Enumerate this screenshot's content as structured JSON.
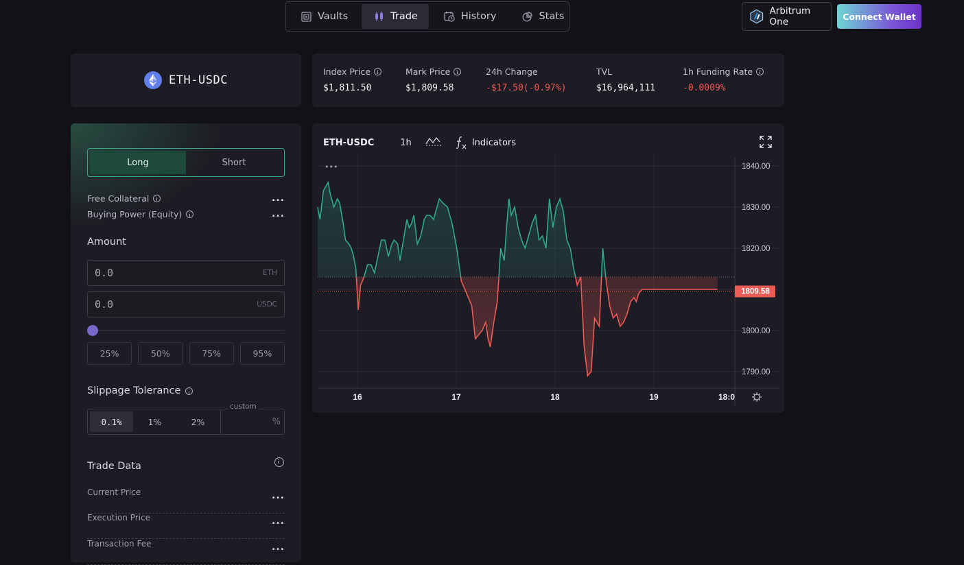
{
  "nav": {
    "tabs": [
      {
        "label": "Vaults",
        "icon": "vault-icon"
      },
      {
        "label": "Trade",
        "icon": "candlestick-icon",
        "active": true
      },
      {
        "label": "History",
        "icon": "history-icon"
      },
      {
        "label": "Stats",
        "icon": "pie-chart-icon"
      }
    ],
    "network": "Arbitrum One",
    "connect": "Connect Wallet"
  },
  "pair": {
    "name": "ETH-USDC",
    "icon": "ethereum-icon"
  },
  "stats": [
    {
      "label": "Index Price",
      "value": "$1,811.50",
      "info": true
    },
    {
      "label": "Mark Price",
      "value": "$1,809.58",
      "info": true
    },
    {
      "label": "24h Change",
      "value": "-$17.50(-0.97%)",
      "negative": true
    },
    {
      "label": "TVL",
      "value": "$16,964,111"
    },
    {
      "label": "1h Funding Rate",
      "value": "-0.0009%",
      "negative": true,
      "info": true
    }
  ],
  "trade": {
    "long_label": "Long",
    "short_label": "Short",
    "selected_side": "Long",
    "free_collateral_label": "Free Collateral",
    "free_collateral_value": "...",
    "buying_power_label": "Buying Power (Equity)",
    "buying_power_value": "...",
    "amount_title": "Amount",
    "amount_eth_placeholder": "0.0",
    "amount_eth_unit": "ETH",
    "amount_usdc_placeholder": "0.0",
    "amount_usdc_unit": "USDC",
    "slider_value": 0,
    "pct_buttons": [
      "25%",
      "50%",
      "75%",
      "95%"
    ],
    "slippage_title": "Slippage Tolerance",
    "slippage_options": [
      "0.1%",
      "1%",
      "2%"
    ],
    "slippage_selected": "0.1%",
    "slippage_custom_label": "custom",
    "slippage_custom_unit": "%",
    "trade_data_title": "Trade Data",
    "trade_data_rows": [
      {
        "label": "Current Price",
        "value": "..."
      },
      {
        "label": "Execution Price",
        "value": "..."
      },
      {
        "label": "Transaction Fee",
        "value": "..."
      }
    ]
  },
  "chart": {
    "symbol": "ETH-USDC",
    "interval": "1h",
    "indicators_label": "Indicators",
    "more_label": "•••"
  },
  "colors": {
    "up": "#2fa98c",
    "down": "#ec5b56",
    "accent": "#7a68c9",
    "background": "#121117",
    "card": "#1d1c24"
  },
  "chart_data": {
    "type": "area",
    "title": "ETH-USDC",
    "x_ticks": [
      "16",
      "17",
      "18",
      "19",
      "18:0"
    ],
    "y_ticks": [
      "1840.00",
      "1830.00",
      "1820.00",
      "1810.00",
      "1800.00",
      "1790.00"
    ],
    "ylim": [
      1786,
      1842
    ],
    "baseline": 1813.0,
    "last_price": 1809.58,
    "last_price_label": "1809.58",
    "x_range": [
      0,
      18
    ],
    "series": [
      {
        "x": [
          0.0,
          0.1,
          0.25,
          0.45,
          0.55,
          0.7,
          0.85,
          0.95,
          1.1,
          1.2,
          1.35,
          1.45,
          1.55,
          1.65,
          1.75,
          1.85,
          2.0,
          2.15,
          2.3,
          2.45,
          2.6,
          2.75,
          2.9,
          3.05,
          3.2,
          3.3,
          3.45,
          3.55,
          3.7,
          3.85,
          3.95,
          4.05,
          4.15,
          4.3,
          4.45,
          4.6,
          4.7,
          4.85,
          5.0,
          5.1,
          5.25,
          5.4,
          5.6,
          5.8,
          6.0,
          6.2,
          6.35,
          6.5,
          6.65,
          6.8,
          6.95,
          7.1,
          7.25,
          7.35,
          7.45,
          7.6,
          7.75,
          7.9,
          8.05,
          8.15,
          8.25,
          8.35,
          8.5,
          8.65,
          8.8,
          8.95,
          9.1,
          9.25,
          9.4,
          9.55,
          9.7,
          9.85,
          10.0,
          10.15,
          10.3,
          10.45,
          10.6,
          10.75,
          10.9,
          11.05,
          11.2,
          11.35,
          11.5,
          11.65,
          11.8,
          11.95,
          12.15,
          12.3,
          12.45,
          12.6,
          12.75,
          12.9,
          13.05,
          13.2,
          13.35,
          13.5,
          13.65,
          13.75,
          13.85,
          14.0,
          14.1,
          14.25,
          14.4,
          14.55,
          14.7,
          14.85,
          15.0,
          15.15,
          15.3,
          15.45,
          15.6,
          15.75,
          15.9,
          16.05,
          16.2,
          16.35,
          16.5,
          16.65,
          16.8,
          16.95,
          17.1,
          17.25
        ],
        "values": [
          1830,
          1827,
          1834,
          1836,
          1833,
          1830,
          1832,
          1831,
          1826,
          1822,
          1821,
          1820,
          1818,
          1815,
          1805,
          1811,
          1813,
          1816,
          1816,
          1814,
          1818,
          1822,
          1822,
          1818,
          1821,
          1822,
          1821,
          1817,
          1822,
          1827,
          1825,
          1826,
          1828,
          1821,
          1823,
          1827,
          1828,
          1828,
          1827,
          1829,
          1832,
          1831,
          1830,
          1826,
          1820,
          1812,
          1810,
          1808,
          1806,
          1798,
          1799,
          1800,
          1802,
          1798,
          1796,
          1802,
          1807,
          1820,
          1817,
          1825,
          1832,
          1828,
          1830,
          1825,
          1822,
          1820,
          1823,
          1826,
          1828,
          1822,
          1823,
          1820,
          1832,
          1825,
          1830,
          1832,
          1829,
          1822,
          1820,
          1815,
          1811,
          1813,
          1796,
          1789,
          1790,
          1803,
          1801,
          1820,
          1812,
          1806,
          1803,
          1804,
          1801,
          1802,
          1804,
          1807,
          1808,
          1807,
          1809,
          1810,
          1810,
          1810,
          1810,
          1810,
          1810,
          1810,
          1810,
          1810,
          1810,
          1810,
          1810,
          1810,
          1810,
          1810,
          1810,
          1810,
          1810,
          1810,
          1810,
          1810,
          1810,
          1810
        ]
      }
    ],
    "grid": true
  }
}
